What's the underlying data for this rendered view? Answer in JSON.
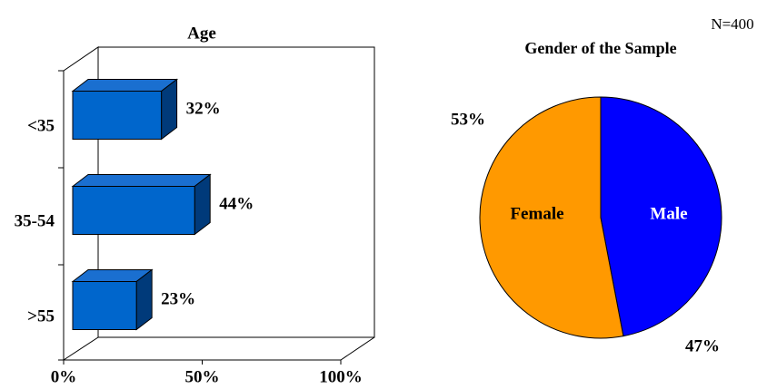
{
  "annotation": "N=400",
  "chart_data": [
    {
      "type": "bar3d",
      "title": "Age",
      "categories": [
        "<35",
        "35-54",
        ">55"
      ],
      "values": [
        32,
        44,
        23
      ],
      "value_labels": [
        "32%",
        "44%",
        "23%"
      ],
      "xlim": [
        0,
        100
      ],
      "xticks": [
        {
          "value": 0,
          "label": "0%"
        },
        {
          "value": 50,
          "label": "50%"
        },
        {
          "value": 100,
          "label": "100%"
        }
      ],
      "color": "#0066cc"
    },
    {
      "type": "pie",
      "title": "Gender of the Sample",
      "categories": [
        "Male",
        "Female"
      ],
      "values": [
        47,
        53
      ],
      "value_labels": [
        "47%",
        "53%"
      ],
      "colors": [
        "#0000ff",
        "#ff9900"
      ]
    }
  ]
}
